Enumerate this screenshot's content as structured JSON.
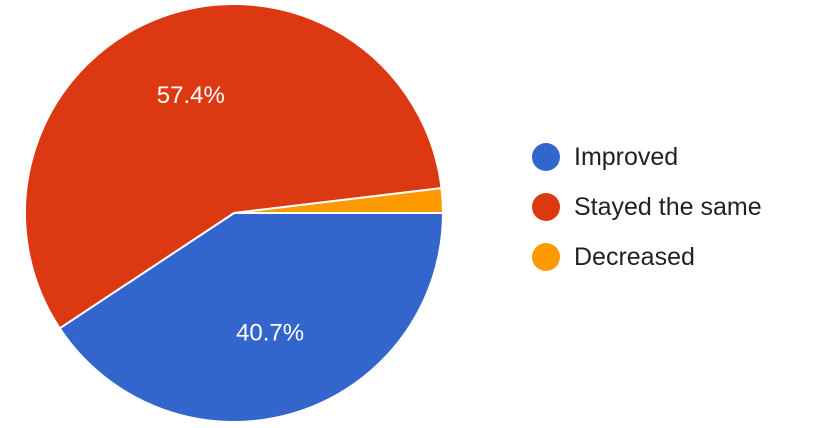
{
  "chart_data": {
    "type": "pie",
    "title": "",
    "slices": [
      {
        "label": "Improved",
        "value": 40.7,
        "color": "#3366cc",
        "data_label": "40.7%"
      },
      {
        "label": "Stayed the same",
        "value": 57.4,
        "color": "#dc3912",
        "data_label": "57.4%"
      },
      {
        "label": "Decreased",
        "value": 1.9,
        "color": "#ff9900",
        "data_label": ""
      }
    ],
    "legend": {
      "placement": "right",
      "items": [
        "Improved",
        "Stayed the same",
        "Decreased"
      ]
    }
  }
}
